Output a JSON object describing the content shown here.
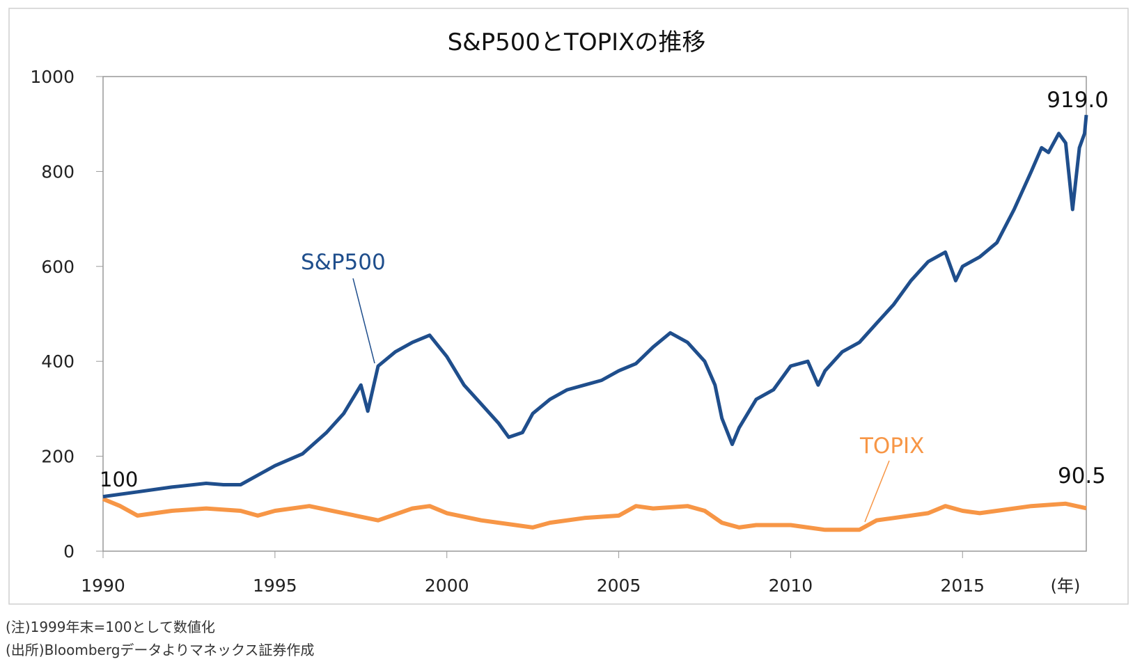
{
  "chart_data": {
    "type": "line",
    "title": "S&P500とTOPIXの推移",
    "xlabel": "(年)",
    "ylabel": "",
    "xlim": [
      1990,
      2018.6
    ],
    "ylim": [
      0,
      1000
    ],
    "x_ticks": [
      "1990",
      "1995",
      "2000",
      "2005",
      "2010",
      "2015"
    ],
    "y_ticks": [
      "0",
      "200",
      "400",
      "600",
      "800",
      "1000"
    ],
    "grid": false,
    "series": [
      {
        "name": "S&P500",
        "color": "#1f4e8c",
        "points": [
          [
            1990,
            115
          ],
          [
            1991,
            125
          ],
          [
            1992,
            135
          ],
          [
            1993,
            143
          ],
          [
            1993.5,
            140
          ],
          [
            1994,
            140
          ],
          [
            1995,
            180
          ],
          [
            1995.8,
            205
          ],
          [
            1996.5,
            250
          ],
          [
            1997,
            290
          ],
          [
            1997.5,
            350
          ],
          [
            1997.7,
            295
          ],
          [
            1998,
            390
          ],
          [
            1998.5,
            420
          ],
          [
            1999,
            440
          ],
          [
            1999.5,
            455
          ],
          [
            2000,
            410
          ],
          [
            2000.5,
            350
          ],
          [
            2001,
            310
          ],
          [
            2001.5,
            270
          ],
          [
            2001.8,
            240
          ],
          [
            2002.2,
            250
          ],
          [
            2002.5,
            290
          ],
          [
            2003,
            320
          ],
          [
            2003.5,
            340
          ],
          [
            2004,
            350
          ],
          [
            2004.5,
            360
          ],
          [
            2005,
            380
          ],
          [
            2005.5,
            395
          ],
          [
            2006,
            430
          ],
          [
            2006.5,
            460
          ],
          [
            2007,
            440
          ],
          [
            2007.5,
            400
          ],
          [
            2007.8,
            350
          ],
          [
            2008,
            280
          ],
          [
            2008.3,
            225
          ],
          [
            2008.5,
            260
          ],
          [
            2009,
            320
          ],
          [
            2009.5,
            340
          ],
          [
            2010,
            390
          ],
          [
            2010.5,
            400
          ],
          [
            2010.8,
            350
          ],
          [
            2011,
            380
          ],
          [
            2011.5,
            420
          ],
          [
            2012,
            440
          ],
          [
            2012.5,
            480
          ],
          [
            2013,
            520
          ],
          [
            2013.5,
            570
          ],
          [
            2014,
            610
          ],
          [
            2014.5,
            630
          ],
          [
            2014.8,
            570
          ],
          [
            2015,
            600
          ],
          [
            2015.5,
            620
          ],
          [
            2016,
            650
          ],
          [
            2016.5,
            720
          ],
          [
            2017,
            800
          ],
          [
            2017.3,
            850
          ],
          [
            2017.5,
            840
          ],
          [
            2017.8,
            880
          ],
          [
            2018.0,
            860
          ],
          [
            2018.2,
            720
          ],
          [
            2018.4,
            850
          ],
          [
            2018.55,
            880
          ],
          [
            2018.6,
            919
          ]
        ]
      },
      {
        "name": "TOPIX",
        "color": "#f79646",
        "points": [
          [
            1990,
            110
          ],
          [
            1990.5,
            95
          ],
          [
            1991,
            75
          ],
          [
            1992,
            85
          ],
          [
            1993,
            90
          ],
          [
            1994,
            85
          ],
          [
            1994.5,
            75
          ],
          [
            1995,
            85
          ],
          [
            1996,
            95
          ],
          [
            1997,
            80
          ],
          [
            1998,
            65
          ],
          [
            1999,
            90
          ],
          [
            1999.5,
            95
          ],
          [
            2000,
            80
          ],
          [
            2001,
            65
          ],
          [
            2002,
            55
          ],
          [
            2002.5,
            50
          ],
          [
            2003,
            60
          ],
          [
            2004,
            70
          ],
          [
            2005,
            75
          ],
          [
            2005.5,
            95
          ],
          [
            2006,
            90
          ],
          [
            2007,
            95
          ],
          [
            2007.5,
            85
          ],
          [
            2008,
            60
          ],
          [
            2008.5,
            50
          ],
          [
            2009,
            55
          ],
          [
            2010,
            55
          ],
          [
            2011,
            45
          ],
          [
            2012,
            45
          ],
          [
            2012.5,
            65
          ],
          [
            2013,
            70
          ],
          [
            2014,
            80
          ],
          [
            2014.5,
            95
          ],
          [
            2015,
            85
          ],
          [
            2015.5,
            80
          ],
          [
            2016,
            85
          ],
          [
            2017,
            95
          ],
          [
            2018,
            100
          ],
          [
            2018.6,
            90.5
          ]
        ]
      }
    ],
    "annotations": {
      "start": "100",
      "sp_end": "919.0",
      "topix_end": "90.5",
      "sp_label": "S&P500",
      "topix_label": "TOPIX"
    }
  },
  "footnotes": {
    "note": "(注)1999年末=100として数値化",
    "source": "(出所)Bloombergデータよりマネックス証券作成"
  }
}
